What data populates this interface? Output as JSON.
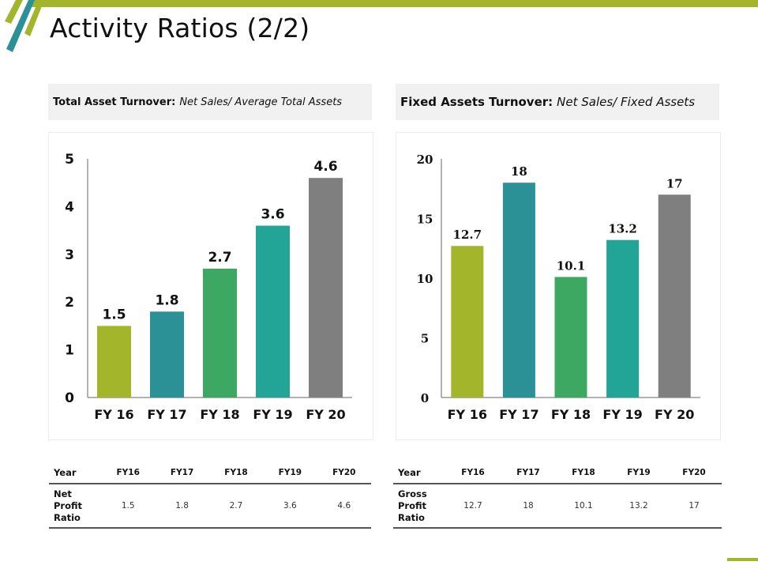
{
  "slide": {
    "title": "Activity Ratios (2/2)",
    "accent_color": "#a3b52b",
    "secondary_color": "#2b9196"
  },
  "left_panel": {
    "header_bold": "Total Asset Turnover:",
    "header_italic": "Net Sales/ Average Total Assets",
    "table": {
      "headers": [
        "Year",
        "FY16",
        "FY17",
        "FY18",
        "FY19",
        "FY20"
      ],
      "row_label_lines": [
        "Net",
        "Profit",
        "Ratio"
      ],
      "values": [
        "1.5",
        "1.8",
        "2.7",
        "3.6",
        "4.6"
      ]
    }
  },
  "right_panel": {
    "header_bold": "Fixed Assets Turnover:",
    "header_italic": "Net Sales/ Fixed Assets",
    "table": {
      "headers": [
        "Year",
        "FY16",
        "FY17",
        "FY18",
        "FY19",
        "FY20"
      ],
      "row_label_lines": [
        "Gross",
        "Profit",
        "Ratio"
      ],
      "values": [
        "12.7",
        "18",
        "10.1",
        "13.2",
        "17"
      ]
    }
  },
  "chart_data": [
    {
      "type": "bar",
      "title": "Total Asset Turnover: Net Sales/ Average Total Assets",
      "categories": [
        "FY 16",
        "FY 17",
        "FY 18",
        "FY 19",
        "FY 20"
      ],
      "values": [
        1.5,
        1.8,
        2.7,
        3.6,
        4.6
      ],
      "data_labels": [
        "1.5",
        "1.8",
        "2.7",
        "3.6",
        "4.6"
      ],
      "colors": [
        "#a3b52b",
        "#2b9196",
        "#3da862",
        "#22a597",
        "#7f7f7f"
      ],
      "xlabel": "",
      "ylabel": "",
      "ylim": [
        0,
        5
      ],
      "yticks": [
        0,
        1,
        2,
        3,
        4,
        5
      ],
      "grid": false,
      "legend": "none"
    },
    {
      "type": "bar",
      "title": "Fixed Assets Turnover: Net Sales/ Fixed Assets",
      "categories": [
        "FY 16",
        "FY 17",
        "FY 18",
        "FY 19",
        "FY 20"
      ],
      "values": [
        12.7,
        18,
        10.1,
        13.2,
        17
      ],
      "data_labels": [
        "12.7",
        "18",
        "10.1",
        "13.2",
        "17"
      ],
      "colors": [
        "#a3b52b",
        "#2b9196",
        "#3da862",
        "#22a597",
        "#7f7f7f"
      ],
      "xlabel": "",
      "ylabel": "",
      "ylim": [
        0,
        20
      ],
      "yticks": [
        0,
        5,
        10,
        15,
        20
      ],
      "grid": false,
      "legend": "none"
    }
  ]
}
